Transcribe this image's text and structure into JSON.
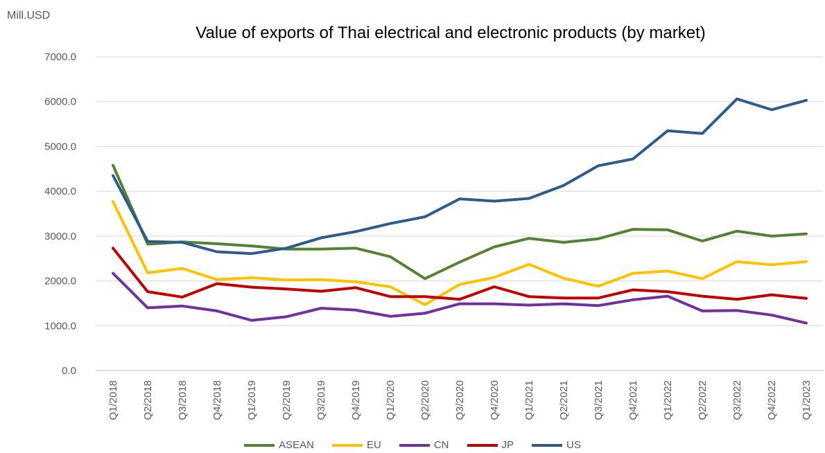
{
  "chart_data": {
    "type": "line",
    "title": "Value of exports of Thai electrical and electronic products (by market)",
    "ylabel": "Mill.USD",
    "xlabel": "",
    "ylim": [
      0,
      7000
    ],
    "ytick_labels": [
      "0.0",
      "1000.0",
      "2000.0",
      "3000.0",
      "4000.0",
      "5000.0",
      "6000.0",
      "7000.0"
    ],
    "categories": [
      "Q1/2018",
      "Q2/2018",
      "Q3/2018",
      "Q4/2018",
      "Q1/2019",
      "Q2/2019",
      "Q3/2019",
      "Q4/2019",
      "Q1/2020",
      "Q2/2020",
      "Q3/2020",
      "Q4/2020",
      "Q1/2021",
      "Q2/2021",
      "Q3/2021",
      "Q4/2021",
      "Q1/2022",
      "Q2/2022",
      "Q3/2022",
      "Q4/2022",
      "Q1/2023"
    ],
    "grid": true,
    "legend_position": "bottom",
    "series": [
      {
        "name": "ASEAN",
        "color": "#548235",
        "values": [
          4580,
          2820,
          2870,
          2830,
          2780,
          2710,
          2710,
          2730,
          2540,
          2050,
          2420,
          2760,
          2950,
          2860,
          2940,
          3150,
          3140,
          2890,
          3110,
          3000,
          3050
        ]
      },
      {
        "name": "EU",
        "color": "#FFC000",
        "values": [
          3770,
          2180,
          2280,
          2030,
          2070,
          2020,
          2030,
          1980,
          1870,
          1470,
          1920,
          2080,
          2370,
          2060,
          1880,
          2170,
          2220,
          2050,
          2430,
          2360,
          2430
        ]
      },
      {
        "name": "CN",
        "color": "#7030A0",
        "values": [
          2170,
          1400,
          1440,
          1330,
          1120,
          1200,
          1390,
          1350,
          1210,
          1280,
          1490,
          1490,
          1460,
          1490,
          1450,
          1580,
          1660,
          1330,
          1340,
          1240,
          1060
        ]
      },
      {
        "name": "JP",
        "color": "#C00000",
        "values": [
          2730,
          1760,
          1640,
          1940,
          1860,
          1820,
          1770,
          1850,
          1650,
          1650,
          1590,
          1870,
          1650,
          1620,
          1620,
          1800,
          1760,
          1660,
          1590,
          1690,
          1610
        ]
      },
      {
        "name": "US",
        "color": "#2E5C8A",
        "values": [
          4350,
          2880,
          2860,
          2650,
          2610,
          2730,
          2960,
          3100,
          3280,
          3430,
          3830,
          3780,
          3840,
          4130,
          4570,
          4720,
          5350,
          5290,
          6060,
          5820,
          6030
        ]
      }
    ]
  }
}
